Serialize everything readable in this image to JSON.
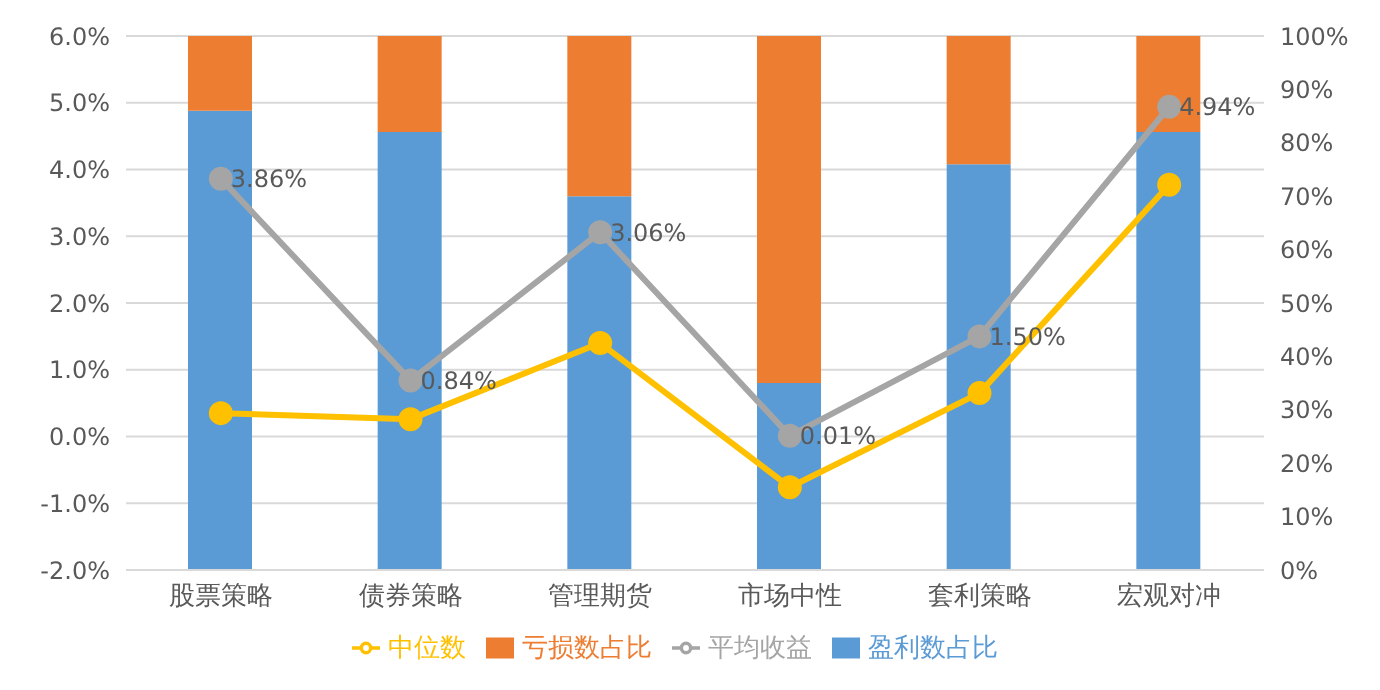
{
  "chart_data": {
    "type": "bar",
    "stacked": true,
    "categories": [
      "股票策略",
      "债券策略",
      "管理期货",
      "市场中性",
      "套利策略",
      "宏观对冲"
    ],
    "series": [
      {
        "name": "盈利数占比",
        "color": "#5b9bd5",
        "axis": "y2",
        "values": [
          86,
          82,
          70,
          35,
          76,
          82
        ]
      },
      {
        "name": "亏损数占比",
        "color": "#ed7d31",
        "axis": "y2",
        "values": [
          14,
          18,
          30,
          65,
          24,
          18
        ]
      },
      {
        "name": "平均收益",
        "type": "line",
        "color": "#a5a5a5",
        "axis": "y",
        "values": [
          3.86,
          0.84,
          3.06,
          0.01,
          1.5,
          4.94
        ],
        "value_labels": [
          "3.86%",
          "0.84%",
          "3.06%",
          "0.01%",
          "1.50%",
          "4.94%"
        ]
      },
      {
        "name": "中位数",
        "type": "line",
        "color": "#ffc000",
        "axis": "y",
        "values": [
          0.35,
          0.26,
          1.4,
          -0.76,
          0.65,
          3.77
        ]
      }
    ],
    "ylim": [
      -2,
      6
    ],
    "yticks": [
      {
        "value": -2,
        "label": "-2.0%"
      },
      {
        "value": -1,
        "label": "-1.0%"
      },
      {
        "value": 0,
        "label": "0.0%"
      },
      {
        "value": 1,
        "label": "1.0%"
      },
      {
        "value": 2,
        "label": "2.0%"
      },
      {
        "value": 3,
        "label": "3.0%"
      },
      {
        "value": 4,
        "label": "4.0%"
      },
      {
        "value": 5,
        "label": "5.0%"
      },
      {
        "value": 6,
        "label": "6.0%"
      }
    ],
    "y2lim": [
      0,
      100
    ],
    "y2ticks": [
      {
        "value": 0,
        "label": "0%"
      },
      {
        "value": 10,
        "label": "10%"
      },
      {
        "value": 20,
        "label": "20%"
      },
      {
        "value": 30,
        "label": "30%"
      },
      {
        "value": 40,
        "label": "40%"
      },
      {
        "value": 50,
        "label": "50%"
      },
      {
        "value": 60,
        "label": "60%"
      },
      {
        "value": 70,
        "label": "70%"
      },
      {
        "value": 80,
        "label": "80%"
      },
      {
        "value": 90,
        "label": "90%"
      },
      {
        "value": 100,
        "label": "100%"
      }
    ],
    "grid": "y",
    "legend": "bottom",
    "marker": "circle",
    "line_style": "solid"
  }
}
